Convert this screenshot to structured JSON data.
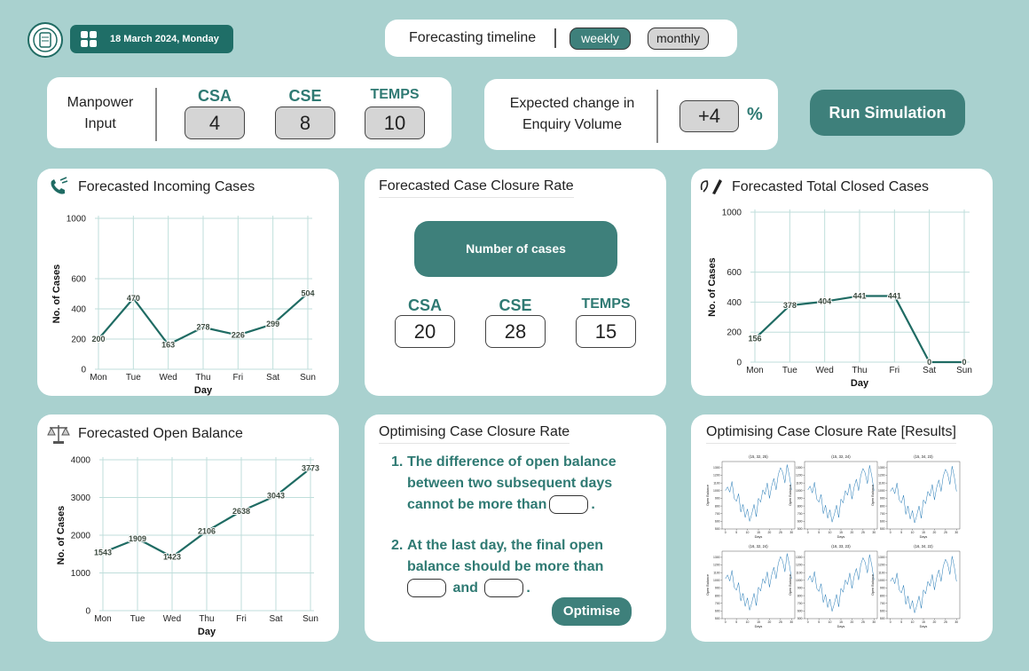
{
  "header": {
    "date": "18 March 2024, Monday",
    "timeline_label": "Forecasting timeline",
    "timeline_options": [
      {
        "label": "weekly",
        "selected": true
      },
      {
        "label": "monthly",
        "selected": false
      }
    ]
  },
  "manpower": {
    "label": "Manpower Input",
    "roles": [
      {
        "name": "CSA",
        "value": 4
      },
      {
        "name": "CSE",
        "value": 8
      },
      {
        "name": "TEMPS",
        "value": 10
      }
    ]
  },
  "enquiry": {
    "label": "Expected change in Enquiry Volume",
    "value": "+4",
    "unit": "%"
  },
  "run_button": "Run Simulation",
  "closure_rate": {
    "title": "Forecasted Case Closure Rate",
    "label": "Number of cases",
    "roles": [
      {
        "name": "CSA",
        "value": 20
      },
      {
        "name": "CSE",
        "value": 28
      },
      {
        "name": "TEMPS",
        "value": 15
      }
    ]
  },
  "optimise": {
    "title": "Optimising Case Closure Rate",
    "rules": [
      {
        "number": "1.",
        "text": "The difference of open balance between two subsequent days cannot be more than",
        "end": "."
      },
      {
        "number": "2.",
        "text": "At the last day, the final open balance should be more than",
        "joiner": "and",
        "end": "."
      }
    ],
    "button": "Optimise"
  },
  "results_title": "Optimising Case Closure Rate [Results]",
  "chart_data": [
    {
      "type": "line",
      "title": "Forecasted Incoming Cases",
      "xlabel": "Day",
      "ylabel": "No. of Cases",
      "categories": [
        "Mon",
        "Tue",
        "Wed",
        "Thu",
        "Fri",
        "Sat",
        "Sun"
      ],
      "series": [
        {
          "color": "#1f6b63",
          "values": [
            200,
            470,
            163,
            278,
            226,
            299,
            504
          ]
        }
      ],
      "ylim": [
        0,
        1000
      ],
      "yticks": [
        0,
        200,
        400,
        600,
        1000
      ],
      "grid": true,
      "data_labels": true
    },
    {
      "type": "line",
      "title": "Forecasted Total Closed Cases",
      "xlabel": "Day",
      "ylabel": "No. of Cases",
      "categories": [
        "Mon",
        "Tue",
        "Wed",
        "Thu",
        "Fri",
        "Sat",
        "Sun"
      ],
      "series": [
        {
          "color": "#1f6b63",
          "values": [
            156,
            378,
            404,
            441,
            441,
            0,
            0
          ]
        }
      ],
      "ylim": [
        0,
        1000
      ],
      "yticks": [
        0,
        200,
        400,
        600,
        1000
      ],
      "grid": true,
      "data_labels": true
    },
    {
      "type": "line",
      "title": "Forecasted Open Balance",
      "xlabel": "Day",
      "ylabel": "No. of Cases",
      "categories": [
        "Mon",
        "Tue",
        "Wed",
        "Thu",
        "Fri",
        "Sat",
        "Sun"
      ],
      "series": [
        {
          "color": "#1f6b63",
          "values": [
            1543,
            1909,
            1423,
            2106,
            2638,
            3043,
            3773
          ]
        }
      ],
      "ylim": [
        0,
        4000
      ],
      "yticks": [
        0,
        1000,
        2000,
        3000,
        4000
      ],
      "grid": true,
      "data_labels": true
    },
    {
      "type": "line",
      "title": "(15, 32, 25)",
      "xlabel": "Days",
      "ylabel": "Open Balance",
      "x": [
        0,
        1,
        2,
        3,
        4,
        5,
        6,
        7,
        8,
        9,
        10,
        11,
        12,
        13,
        14,
        15,
        16,
        17,
        18,
        19,
        20,
        21,
        22,
        23,
        24,
        25,
        26,
        27,
        28,
        29,
        30
      ],
      "series": [
        {
          "color": "#1f77b4",
          "values": [
            1000,
            1050,
            980,
            1120,
            900,
            860,
            960,
            720,
            820,
            650,
            760,
            600,
            700,
            820,
            660,
            900,
            850,
            1010,
            950,
            1100,
            900,
            1060,
            1160,
            1010,
            1210,
            1300,
            1240,
            1100,
            1340,
            1200,
            1010
          ]
        }
      ],
      "xlim": [
        -1.5,
        31.5
      ],
      "xticks": [
        0,
        5,
        10,
        15,
        20,
        25,
        30
      ],
      "ylim": [
        500,
        1380
      ],
      "yticks": [
        500,
        600,
        700,
        800,
        900,
        1000,
        1100,
        1200,
        1300
      ],
      "grid": false,
      "data_labels": false
    },
    {
      "type": "line",
      "title": "(15, 32, 24)",
      "xlabel": "Days",
      "ylabel": "Open Balance",
      "x": [
        0,
        1,
        2,
        3,
        4,
        5,
        6,
        7,
        8,
        9,
        10,
        11,
        12,
        13,
        14,
        15,
        16,
        17,
        18,
        19,
        20,
        21,
        22,
        23,
        24,
        25,
        26,
        27,
        28,
        29,
        30
      ],
      "series": [
        {
          "color": "#1f77b4",
          "values": [
            1010,
            1060,
            970,
            1110,
            890,
            850,
            950,
            700,
            810,
            640,
            750,
            590,
            690,
            810,
            650,
            890,
            840,
            1000,
            940,
            1090,
            890,
            1050,
            1150,
            1000,
            1200,
            1290,
            1230,
            1090,
            1330,
            1190,
            1000
          ]
        }
      ],
      "xlim": [
        -1.5,
        31.5
      ],
      "xticks": [
        0,
        5,
        10,
        15,
        20,
        25,
        30
      ],
      "ylim": [
        500,
        1380
      ],
      "yticks": [
        500,
        600,
        700,
        800,
        900,
        1000,
        1100,
        1200,
        1300
      ],
      "grid": false,
      "data_labels": false
    },
    {
      "type": "line",
      "title": "(15, 34, 23)",
      "xlabel": "Days",
      "ylabel": "Open Balance",
      "x": [
        0,
        1,
        2,
        3,
        4,
        5,
        6,
        7,
        8,
        9,
        10,
        11,
        12,
        13,
        14,
        15,
        16,
        17,
        18,
        19,
        20,
        21,
        22,
        23,
        24,
        25,
        26,
        27,
        28,
        29,
        30
      ],
      "series": [
        {
          "color": "#1f77b4",
          "values": [
            990,
            1040,
            960,
            1100,
            880,
            840,
            940,
            690,
            800,
            630,
            740,
            580,
            680,
            800,
            640,
            880,
            830,
            990,
            930,
            1080,
            880,
            1040,
            1140,
            990,
            1190,
            1280,
            1220,
            1080,
            1320,
            1180,
            990
          ]
        }
      ],
      "xlim": [
        -1.5,
        31.5
      ],
      "xticks": [
        0,
        5,
        10,
        15,
        20,
        25,
        30
      ],
      "ylim": [
        500,
        1380
      ],
      "yticks": [
        500,
        600,
        700,
        800,
        900,
        1000,
        1100,
        1200,
        1300
      ],
      "grid": false,
      "data_labels": false
    },
    {
      "type": "line",
      "title": "(16, 32, 24)",
      "xlabel": "Days",
      "ylabel": "Open Balance",
      "x": [
        0,
        1,
        2,
        3,
        4,
        5,
        6,
        7,
        8,
        9,
        10,
        11,
        12,
        13,
        14,
        15,
        16,
        17,
        18,
        19,
        20,
        21,
        22,
        23,
        24,
        25,
        26,
        27,
        28,
        29,
        30
      ],
      "series": [
        {
          "color": "#1f77b4",
          "values": [
            1020,
            1070,
            990,
            1130,
            910,
            870,
            970,
            730,
            830,
            660,
            770,
            610,
            710,
            830,
            670,
            910,
            860,
            1020,
            960,
            1110,
            910,
            1070,
            1170,
            1020,
            1220,
            1310,
            1250,
            1110,
            1350,
            1210,
            1020
          ]
        }
      ],
      "xlim": [
        -1.5,
        31.5
      ],
      "xticks": [
        0,
        5,
        10,
        15,
        20,
        25,
        30
      ],
      "ylim": [
        500,
        1380
      ],
      "yticks": [
        500,
        600,
        700,
        800,
        900,
        1000,
        1100,
        1200,
        1300
      ],
      "grid": false,
      "data_labels": false
    },
    {
      "type": "line",
      "title": "(16, 33, 23)",
      "xlabel": "Days",
      "ylabel": "Open Balance",
      "x": [
        0,
        1,
        2,
        3,
        4,
        5,
        6,
        7,
        8,
        9,
        10,
        11,
        12,
        13,
        14,
        15,
        16,
        17,
        18,
        19,
        20,
        21,
        22,
        23,
        24,
        25,
        26,
        27,
        28,
        29,
        30
      ],
      "series": [
        {
          "color": "#1f77b4",
          "values": [
            1000,
            1060,
            975,
            1115,
            895,
            855,
            955,
            710,
            815,
            645,
            755,
            595,
            695,
            815,
            655,
            895,
            845,
            1005,
            945,
            1095,
            895,
            1055,
            1155,
            1005,
            1205,
            1295,
            1235,
            1095,
            1335,
            1195,
            1005
          ]
        }
      ],
      "xlim": [
        -1.5,
        31.5
      ],
      "xticks": [
        0,
        5,
        10,
        15,
        20,
        25,
        30
      ],
      "ylim": [
        500,
        1380
      ],
      "yticks": [
        500,
        600,
        700,
        800,
        900,
        1000,
        1100,
        1200,
        1300
      ],
      "grid": false,
      "data_labels": false
    },
    {
      "type": "line",
      "title": "(16, 34, 22)",
      "xlabel": "Days",
      "ylabel": "Open Balance",
      "x": [
        0,
        1,
        2,
        3,
        4,
        5,
        6,
        7,
        8,
        9,
        10,
        11,
        12,
        13,
        14,
        15,
        16,
        17,
        18,
        19,
        20,
        21,
        22,
        23,
        24,
        25,
        26,
        27,
        28,
        29,
        30
      ],
      "series": [
        {
          "color": "#1f77b4",
          "values": [
            985,
            1035,
            955,
            1095,
            875,
            835,
            935,
            685,
            795,
            625,
            735,
            575,
            675,
            795,
            635,
            875,
            825,
            985,
            925,
            1075,
            875,
            1035,
            1135,
            985,
            1185,
            1275,
            1215,
            1075,
            1315,
            1175,
            985
          ]
        }
      ],
      "xlim": [
        -1.5,
        31.5
      ],
      "xticks": [
        0,
        5,
        10,
        15,
        20,
        25,
        30
      ],
      "ylim": [
        500,
        1380
      ],
      "yticks": [
        500,
        600,
        700,
        800,
        900,
        1000,
        1100,
        1200,
        1300
      ],
      "grid": false,
      "data_labels": false
    }
  ]
}
